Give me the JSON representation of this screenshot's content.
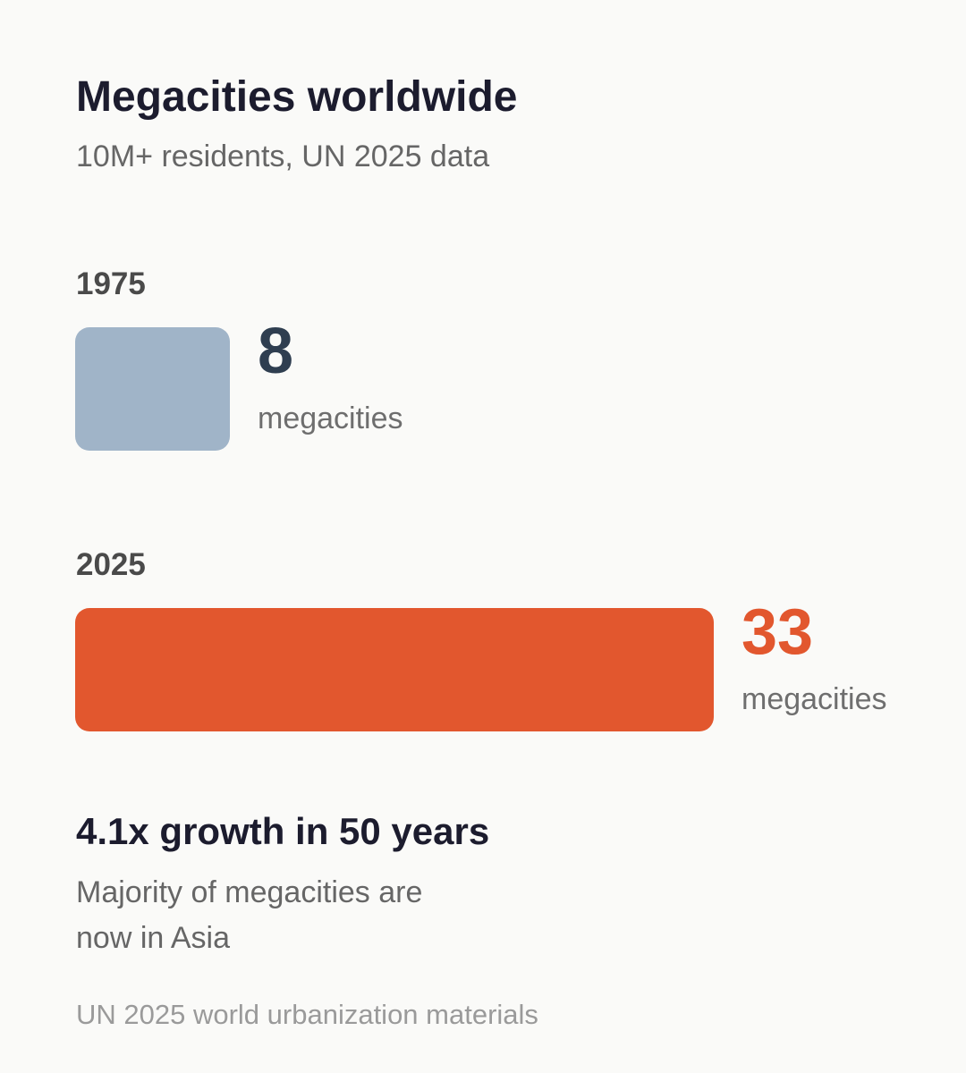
{
  "header": {
    "title": "Megacities worldwide",
    "subtitle": "10M+ residents, UN 2025 data"
  },
  "chart_data": {
    "type": "bar",
    "orientation": "horizontal",
    "categories": [
      "1975",
      "2025"
    ],
    "values": [
      8,
      33
    ],
    "value_unit": "megacities",
    "colors": [
      "#a0b4c8",
      "#e2572e"
    ],
    "value_colors": [
      "#2f3e50",
      "#e2572e"
    ],
    "grid": false,
    "legend": "none"
  },
  "summary": {
    "headline": "4.1x growth in 50 years",
    "note": "Majority of megacities are now in Asia"
  },
  "footer": {
    "source": "UN 2025 world urbanization materials"
  }
}
